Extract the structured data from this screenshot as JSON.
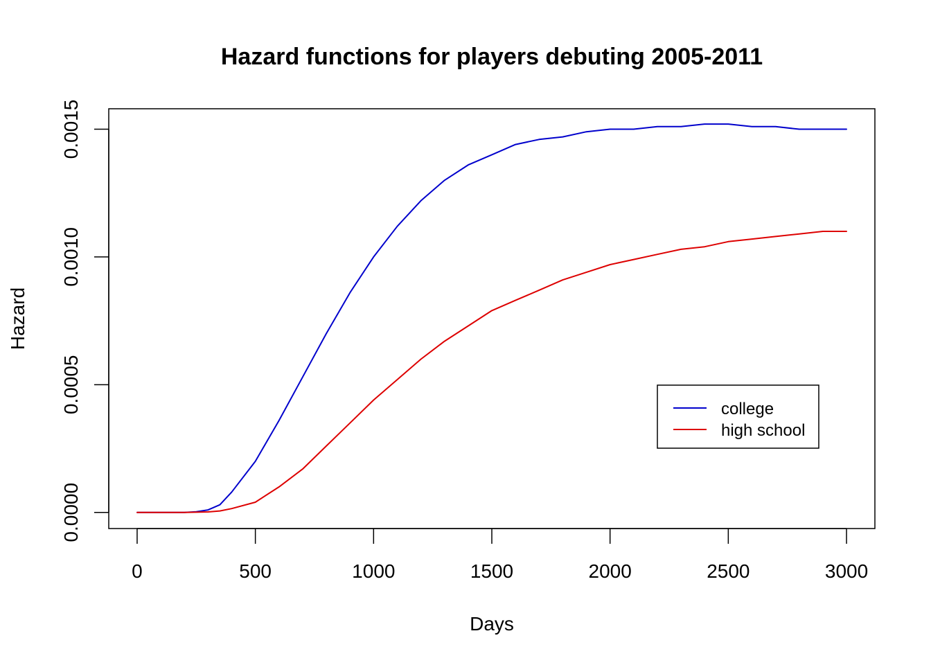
{
  "chart_data": {
    "type": "line",
    "title": "Hazard functions for players debuting 2005-2011",
    "xlabel": "Days",
    "ylabel": "Hazard",
    "xlim": [
      -120,
      3120
    ],
    "ylim": [
      -6.3e-05,
      0.00158
    ],
    "xticks": [
      0,
      500,
      1000,
      1500,
      2000,
      2500,
      3000
    ],
    "xtick_labels": [
      "0",
      "500",
      "1000",
      "1500",
      "2000",
      "2500",
      "3000"
    ],
    "yticks": [
      0,
      0.0005,
      0.001,
      0.0015
    ],
    "ytick_labels": [
      "0.0000",
      "0.0005",
      "0.0010",
      "0.0015"
    ],
    "grid": false,
    "legend_position": "right",
    "series": [
      {
        "name": "college",
        "color": "#0000cc",
        "x": [
          0,
          100,
          200,
          250,
          300,
          350,
          400,
          500,
          600,
          700,
          800,
          900,
          1000,
          1100,
          1200,
          1300,
          1400,
          1500,
          1600,
          1700,
          1800,
          1900,
          2000,
          2100,
          2200,
          2300,
          2400,
          2500,
          2600,
          2700,
          2800,
          2900,
          3000
        ],
        "y": [
          0,
          0,
          0,
          3e-06,
          1e-05,
          3e-05,
          8e-05,
          0.0002,
          0.00036,
          0.00053,
          0.0007,
          0.00086,
          0.001,
          0.00112,
          0.00122,
          0.0013,
          0.00136,
          0.0014,
          0.00144,
          0.00146,
          0.00147,
          0.00149,
          0.0015,
          0.0015,
          0.00151,
          0.00151,
          0.00152,
          0.00152,
          0.00151,
          0.00151,
          0.0015,
          0.0015,
          0.0015
        ]
      },
      {
        "name": "high school",
        "color": "#dd0000",
        "x": [
          0,
          100,
          200,
          300,
          350,
          400,
          500,
          600,
          700,
          800,
          900,
          1000,
          1100,
          1200,
          1300,
          1400,
          1500,
          1600,
          1700,
          1800,
          1900,
          2000,
          2100,
          2200,
          2300,
          2400,
          2500,
          2600,
          2700,
          2800,
          2900,
          3000
        ],
        "y": [
          0,
          0,
          0,
          2e-06,
          6e-06,
          1.5e-05,
          4e-05,
          0.0001,
          0.00017,
          0.00026,
          0.00035,
          0.00044,
          0.00052,
          0.0006,
          0.00067,
          0.00073,
          0.00079,
          0.00083,
          0.00087,
          0.00091,
          0.00094,
          0.00097,
          0.00099,
          0.00101,
          0.00103,
          0.00104,
          0.00106,
          0.00107,
          0.00108,
          0.00109,
          0.0011,
          0.0011
        ]
      }
    ]
  }
}
